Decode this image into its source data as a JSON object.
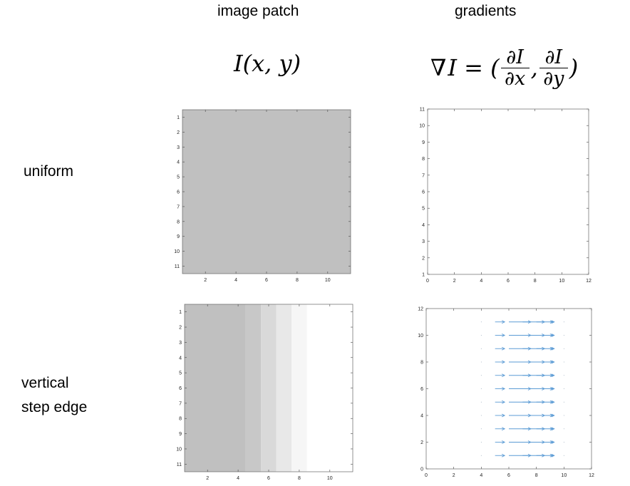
{
  "headers": {
    "patch": "image patch",
    "gradients": "gradients"
  },
  "formulas": {
    "patch_lhs": "I",
    "patch_args": "(x, y)",
    "grad_nabla": "∇",
    "grad_lhs": "I = (",
    "grad_num1": "∂I",
    "grad_den1": "∂x",
    "grad_comma": ",",
    "grad_num2": "∂I",
    "grad_den2": "∂y",
    "grad_close": ")"
  },
  "rows": {
    "uniform": "uniform",
    "edge_line1": "vertical",
    "edge_line2": "step edge"
  },
  "panels": {
    "uniform_patch": {
      "y_ticks": [
        "1",
        "2",
        "3",
        "4",
        "5",
        "6",
        "7",
        "8",
        "9",
        "10",
        "11"
      ],
      "x_ticks": [
        "2",
        "4",
        "6",
        "8",
        "10"
      ],
      "fill": "#c0c0c0"
    },
    "uniform_grad": {
      "y_ticks": [
        "1",
        "2",
        "3",
        "4",
        "5",
        "6",
        "7",
        "8",
        "9",
        "10",
        "11"
      ],
      "x_ticks": [
        "0",
        "2",
        "4",
        "6",
        "8",
        "10",
        "12"
      ]
    },
    "edge_patch": {
      "y_ticks": [
        "1",
        "2",
        "3",
        "4",
        "5",
        "6",
        "7",
        "8",
        "9",
        "10",
        "11"
      ],
      "x_ticks": [
        "2",
        "4",
        "6",
        "8",
        "10"
      ],
      "columns": [
        {
          "from": 0.5,
          "to": 4.5,
          "color": "#c0c0c0"
        },
        {
          "from": 4.5,
          "to": 5.5,
          "color": "#c8c8c8"
        },
        {
          "from": 5.5,
          "to": 6.5,
          "color": "#d9d9d9"
        },
        {
          "from": 6.5,
          "to": 7.5,
          "color": "#e8e8e8"
        },
        {
          "from": 7.5,
          "to": 8.5,
          "color": "#f6f6f6"
        },
        {
          "from": 8.5,
          "to": 11.5,
          "color": "#ffffff"
        }
      ]
    },
    "edge_grad": {
      "y_ticks": [
        "0",
        "2",
        "4",
        "6",
        "8",
        "10",
        "12"
      ],
      "x_ticks": [
        "0",
        "2",
        "4",
        "6",
        "8",
        "10",
        "12"
      ],
      "arrow_color": "#5b9bd5",
      "arrow_rows": [
        1,
        2,
        3,
        4,
        5,
        6,
        7,
        8,
        9,
        10,
        11
      ],
      "arrows": [
        {
          "x": 5,
          "dx": 0.7
        },
        {
          "x": 6,
          "dx": 1.6
        },
        {
          "x": 7,
          "dx": 1.6
        },
        {
          "x": 8,
          "dx": 1.3
        },
        {
          "x": 9,
          "dx": 0.2
        }
      ]
    }
  }
}
